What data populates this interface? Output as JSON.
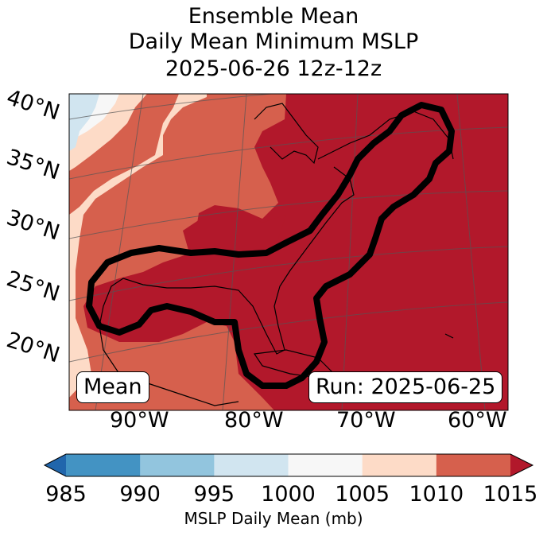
{
  "title": {
    "line1": "Ensemble Mean",
    "line2": "Daily Mean Minimum MSLP",
    "line3": "2025-06-26 12z-12z"
  },
  "map": {
    "lat_labels": [
      "40°N",
      "35°N",
      "30°N",
      "25°N",
      "20°N"
    ],
    "lon_labels": [
      "90°W",
      "80°W",
      "70°W",
      "60°W"
    ],
    "mean_box": "Mean",
    "run_box": "Run: 2025-06-25"
  },
  "colorbar": {
    "label": "MSLP Daily Mean (mb)",
    "ticks": [
      "985",
      "990",
      "995",
      "1000",
      "1005",
      "1010",
      "1015"
    ],
    "colors": [
      "#4393c3",
      "#92c5de",
      "#d1e5f0",
      "#f7f7f7",
      "#fddbc7",
      "#d6604d",
      "#b2182b"
    ],
    "under_color": "#2166ac",
    "over_color": "#b2182b"
  }
}
